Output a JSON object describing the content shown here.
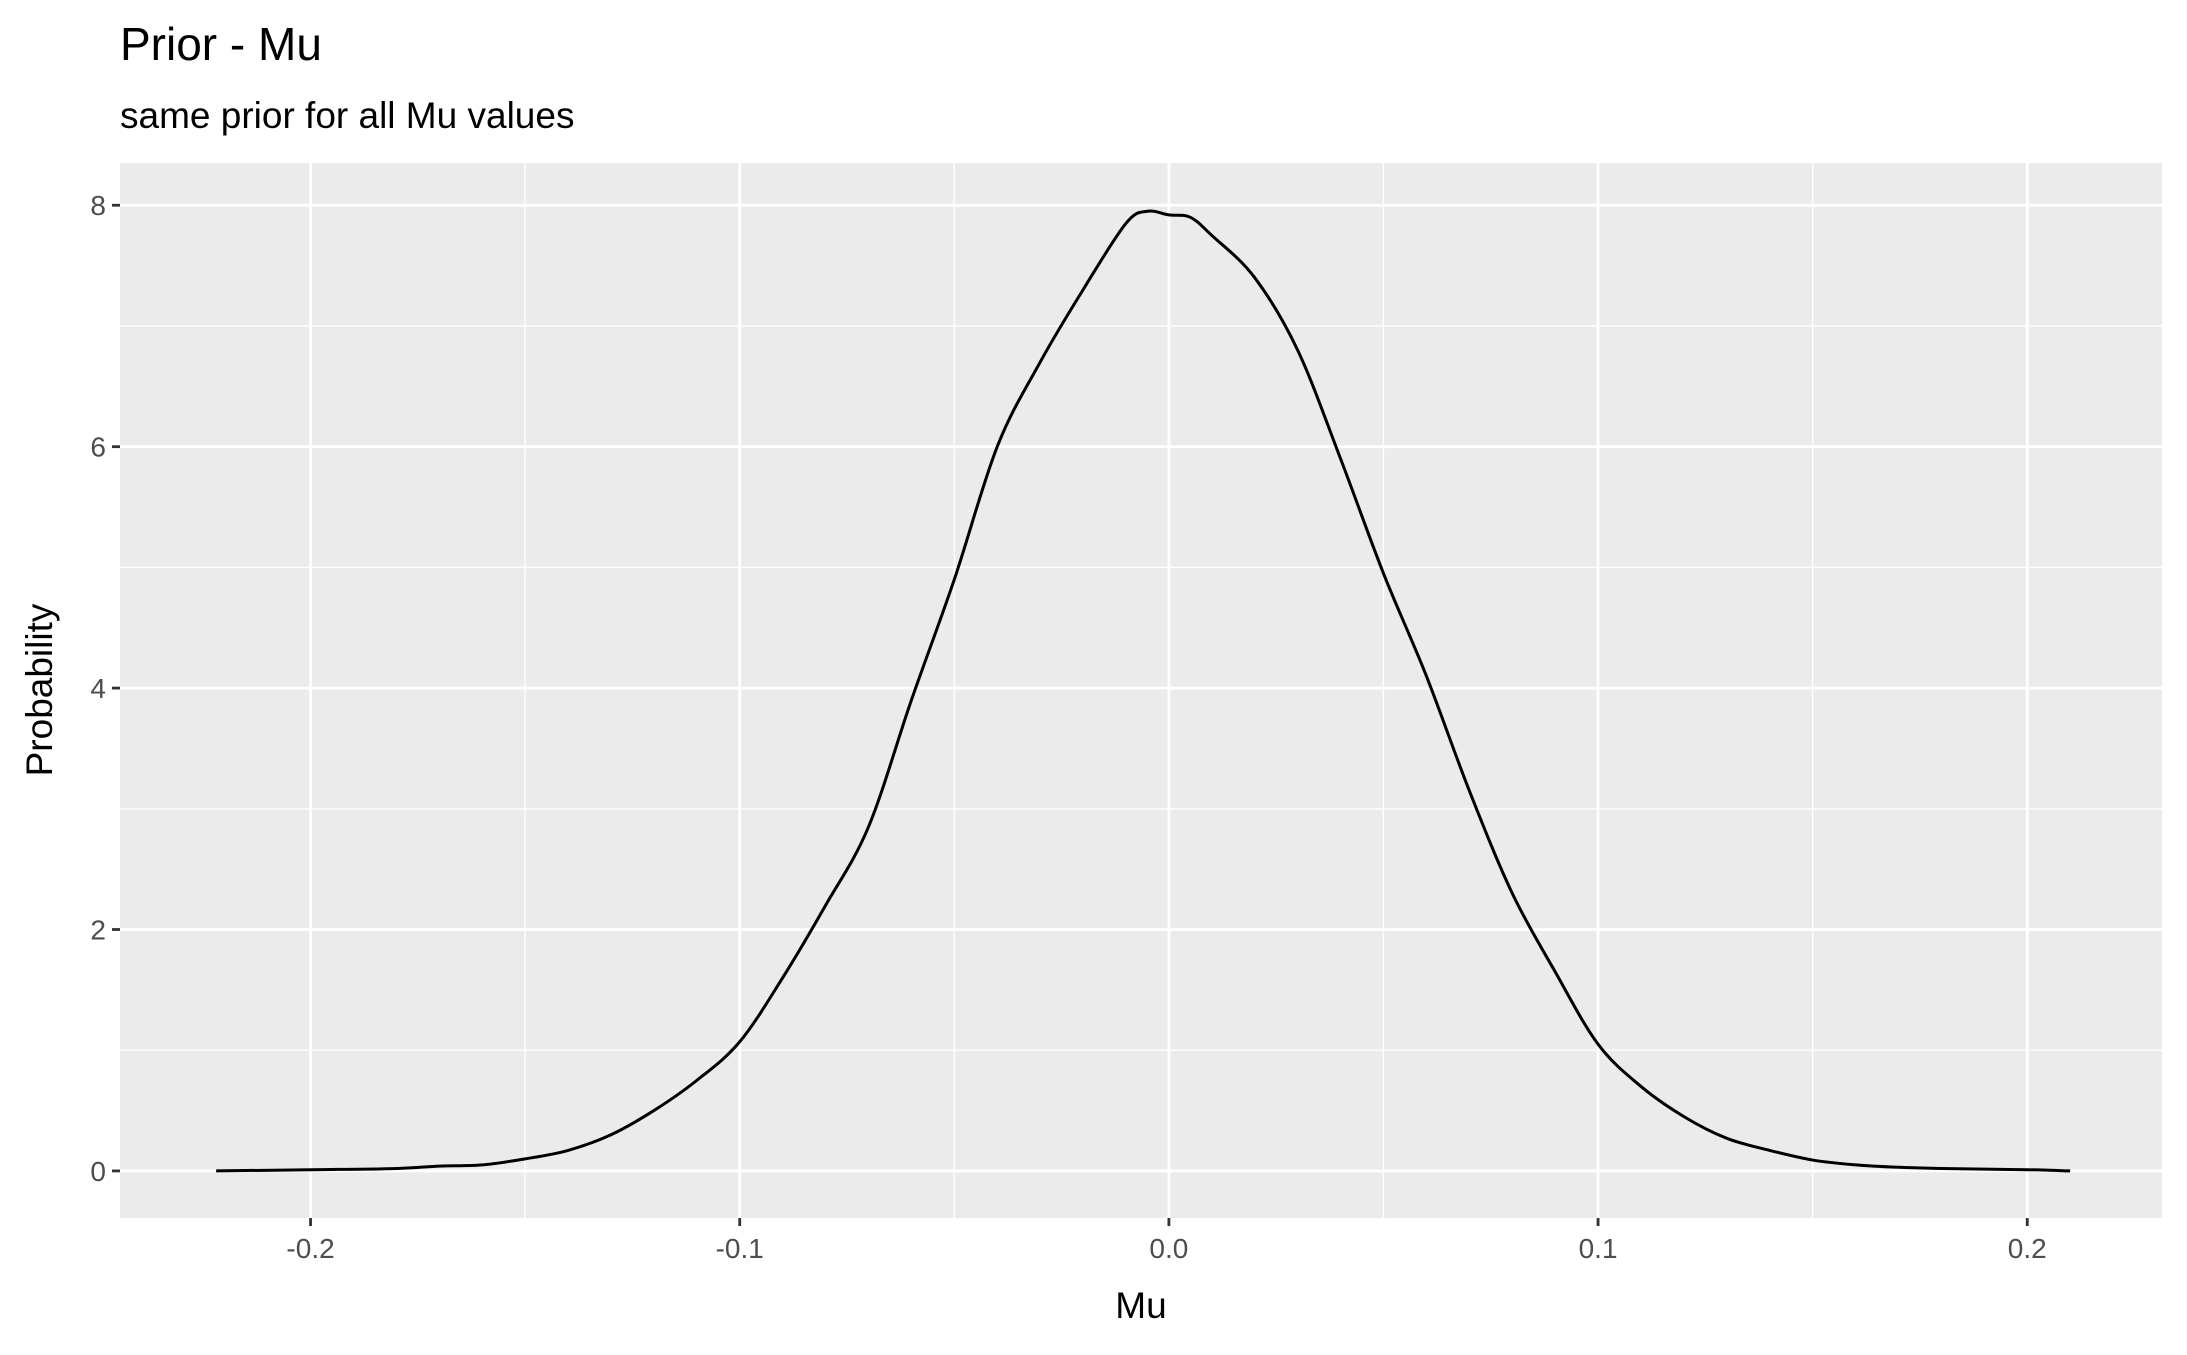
{
  "chart_data": {
    "type": "line",
    "title": "Prior - Mu",
    "subtitle": "same prior for all Mu values",
    "xlabel": "Mu",
    "ylabel": "Probability",
    "xlim": [
      -0.2444,
      0.2314
    ],
    "ylim": [
      -0.39,
      8.35
    ],
    "xticks": [
      -0.2,
      -0.1,
      0.0,
      0.1,
      0.2
    ],
    "xtick_labels": [
      "-0.2",
      "-0.1",
      "0.0",
      "0.1",
      "0.2"
    ],
    "yticks": [
      0,
      2,
      4,
      6,
      8
    ],
    "ytick_labels": [
      "0",
      "2",
      "4",
      "6",
      "8"
    ],
    "grid": true,
    "background": "#EBEBEB",
    "line_color": "#000000",
    "x": [
      -0.222,
      -0.2,
      -0.18,
      -0.17,
      -0.16,
      -0.15,
      -0.14,
      -0.13,
      -0.12,
      -0.11,
      -0.1,
      -0.09,
      -0.08,
      -0.07,
      -0.06,
      -0.05,
      -0.04,
      -0.03,
      -0.02,
      -0.01,
      -0.005,
      0.0,
      0.005,
      0.01,
      0.02,
      0.03,
      0.04,
      0.05,
      0.06,
      0.07,
      0.08,
      0.09,
      0.1,
      0.11,
      0.12,
      0.13,
      0.14,
      0.15,
      0.16,
      0.17,
      0.18,
      0.2,
      0.21
    ],
    "y": [
      0,
      0.01,
      0.02,
      0.04,
      0.05,
      0.1,
      0.17,
      0.3,
      0.5,
      0.75,
      1.07,
      1.6,
      2.2,
      2.85,
      3.9,
      4.9,
      6.0,
      6.7,
      7.3,
      7.85,
      7.95,
      7.92,
      7.9,
      7.75,
      7.4,
      6.8,
      5.9,
      4.95,
      4.1,
      3.15,
      2.3,
      1.65,
      1.05,
      0.7,
      0.45,
      0.27,
      0.17,
      0.09,
      0.05,
      0.03,
      0.02,
      0.01,
      0.0
    ]
  }
}
